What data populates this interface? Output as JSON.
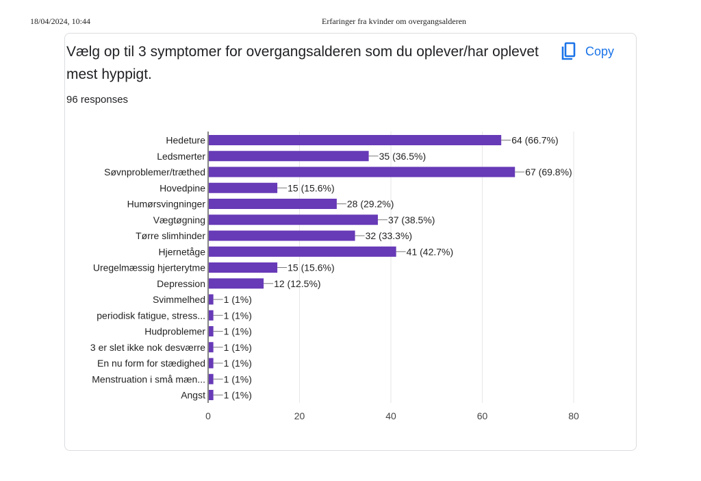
{
  "print_header": {
    "date": "18/04/2024, 10:44",
    "title": "Erfaringer fra kvinder om overgangsalderen"
  },
  "question": {
    "title": "Vælg op til 3 symptomer for overgangsalderen som du oplever/har oplevet mest hyppigt.",
    "responses": "96 responses",
    "copy_label": "Copy",
    "copy_icon": "copy-icon"
  },
  "colors": {
    "bar": "#673ab7",
    "accent": "#1a73e8"
  },
  "chart_data": {
    "type": "bar",
    "orientation": "horizontal",
    "categories": [
      "Hedeture",
      "Ledsmerter",
      "Søvnproblemer/træthed",
      "Hovedpine",
      "Humørsvingninger",
      "Vægtøgning",
      "Tørre slimhinder",
      "Hjernetåge",
      "Uregelmæssig hjerterytme",
      "Depression",
      "Svimmelhed",
      "periodisk fatigue, stress...",
      "Hudproblemer",
      "3 er slet ikke nok desværre",
      "En nu form for stædighed",
      "Menstruation i små mæn...",
      "Angst"
    ],
    "values": [
      64,
      35,
      67,
      15,
      28,
      37,
      32,
      41,
      15,
      12,
      1,
      1,
      1,
      1,
      1,
      1,
      1
    ],
    "data_labels": [
      "64 (66.7%)",
      "35 (36.5%)",
      "67 (69.8%)",
      "15 (15.6%)",
      "28 (29.2%)",
      "37 (38.5%)",
      "32 (33.3%)",
      "41 (42.7%)",
      "15 (15.6%)",
      "12 (12.5%)",
      "1 (1%)",
      "1 (1%)",
      "1 (1%)",
      "1 (1%)",
      "1 (1%)",
      "1 (1%)",
      "1 (1%)"
    ],
    "xlim": [
      0,
      80
    ],
    "xticks": [
      0,
      20,
      40,
      60,
      80
    ],
    "grid": true,
    "title": "",
    "xlabel": "",
    "ylabel": ""
  }
}
